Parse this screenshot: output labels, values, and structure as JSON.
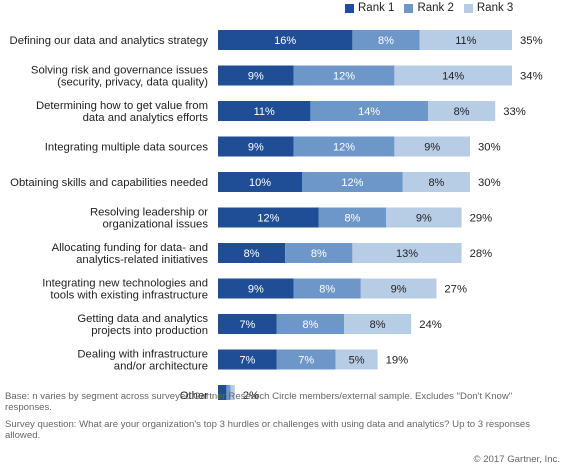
{
  "chart_data": {
    "type": "bar",
    "stacked": true,
    "orientation": "horizontal",
    "legend_position": "top-right",
    "grid": false,
    "xlim": [
      0,
      40
    ],
    "categories": [
      [
        "Defining our data and analytics strategy"
      ],
      [
        "Solving risk and governance issues",
        "(security, privacy, data quality)"
      ],
      [
        "Determining how to get value from",
        "data and analytics efforts"
      ],
      [
        "Integrating multiple data sources"
      ],
      [
        "Obtaining skills and capabilities needed"
      ],
      [
        "Resolving leadership or",
        "organizational issues"
      ],
      [
        "Allocating funding for data- and",
        "analytics-related initiatives"
      ],
      [
        "Integrating new technologies and",
        "tools with existing infrastructure"
      ],
      [
        "Getting data and analytics",
        "projects into production"
      ],
      [
        "Dealing with infrastructure",
        "and/or architecture"
      ],
      [
        "Other"
      ]
    ],
    "series": [
      {
        "name": "Rank 1",
        "color": "#1f4e96",
        "values": [
          16,
          9,
          11,
          9,
          10,
          12,
          8,
          9,
          7,
          7,
          1
        ]
      },
      {
        "name": "Rank 2",
        "color": "#6d97c9",
        "values": [
          8,
          12,
          14,
          12,
          12,
          8,
          8,
          8,
          8,
          7,
          0.5
        ]
      },
      {
        "name": "Rank 3",
        "color": "#b7cde6",
        "values": [
          11,
          14,
          8,
          9,
          8,
          9,
          13,
          9,
          8,
          5,
          0.5
        ]
      }
    ],
    "value_labels": [
      [
        "16%",
        "8%",
        "11%"
      ],
      [
        "9%",
        "12%",
        "14%"
      ],
      [
        "11%",
        "14%",
        "8%"
      ],
      [
        "9%",
        "12%",
        "9%"
      ],
      [
        "10%",
        "12%",
        "8%"
      ],
      [
        "12%",
        "8%",
        "9%"
      ],
      [
        "8%",
        "8%",
        "13%"
      ],
      [
        "9%",
        "8%",
        "9%"
      ],
      [
        "7%",
        "8%",
        "8%"
      ],
      [
        "7%",
        "7%",
        "5%"
      ],
      [
        "",
        "",
        ""
      ]
    ],
    "totals": [
      "35%",
      "34%",
      "33%",
      "30%",
      "30%",
      "29%",
      "28%",
      "27%",
      "24%",
      "19%",
      "2%"
    ]
  },
  "footnotes": {
    "base_line1": "Base: n varies by segment across surveyed Gartner Research Circle members/external sample. Excludes \"Don't Know\"",
    "base_line2": "responses.",
    "question_line1": "Survey question: What are your organization's top 3 hurdles or challenges with using data and analytics? Up to 3 responses",
    "question_line2": "allowed.",
    "copyright": "© 2017 Gartner, Inc."
  }
}
